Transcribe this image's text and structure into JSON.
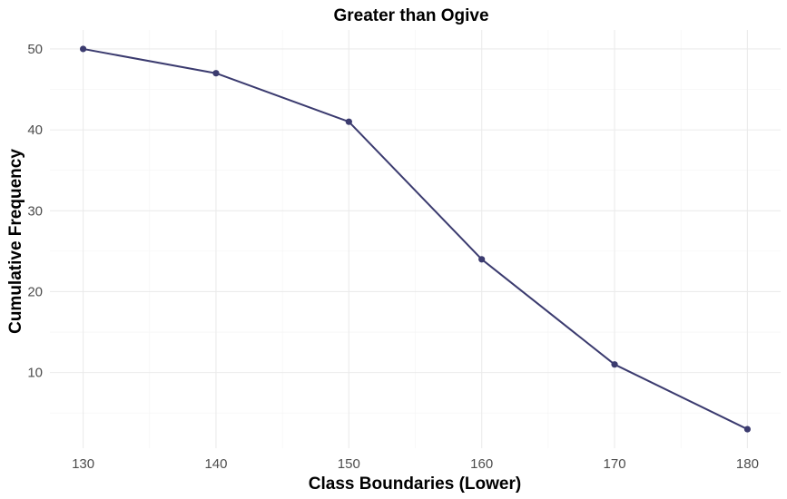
{
  "chart_data": {
    "type": "line",
    "title": "Greater than Ogive",
    "xlabel": "Class Boundaries (Lower)",
    "ylabel": "Cumulative Frequency",
    "x": [
      130,
      140,
      150,
      160,
      170,
      180
    ],
    "series": [
      {
        "values": [
          50,
          47,
          41,
          24,
          11,
          3
        ]
      }
    ],
    "xticks": [
      130,
      140,
      150,
      160,
      170,
      180
    ],
    "yticks": [
      10,
      20,
      30,
      40,
      50
    ],
    "xlim": [
      127.5,
      182.5
    ],
    "ylim": [
      0.65,
      52.35
    ],
    "grid": true,
    "legend": "none",
    "line_color": "#3b3b6f"
  }
}
